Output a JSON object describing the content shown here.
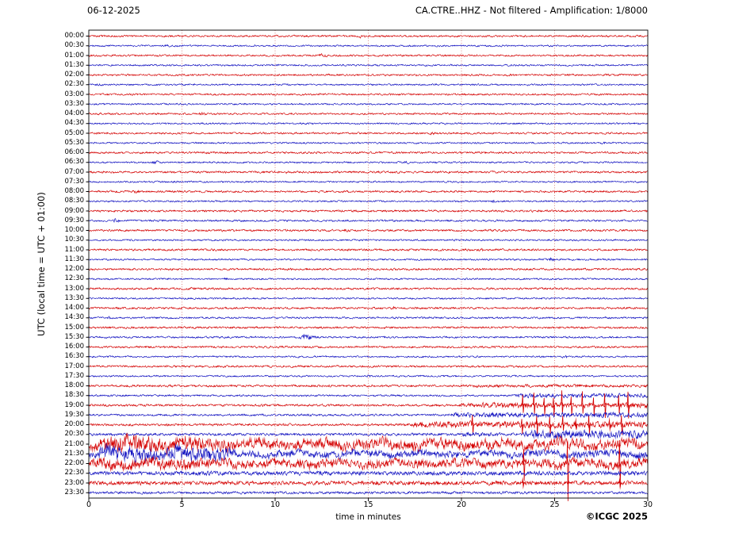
{
  "header": {
    "date": "06-12-2025",
    "title": "CA.CTRE..HHZ - Not filtered - Amplification: 1/8000"
  },
  "axes": {
    "ylabel": "UTC (local time = UTC + 01:00)",
    "xlabel": "time in minutes",
    "x_range": [
      0,
      30
    ],
    "x_ticks": [
      0,
      5,
      10,
      15,
      20,
      25,
      30
    ],
    "grid_x": [
      5,
      10,
      15,
      20,
      25
    ]
  },
  "footer": {
    "copyright": "©ICGC 2025"
  },
  "colors": {
    "trace_red": "#d40000",
    "trace_blue": "#1010c0",
    "grid": "#cc5555",
    "axis": "#000000",
    "background": "#ffffff"
  },
  "chart_data": {
    "type": "line",
    "subtype": "helicorder-seismogram",
    "station": "CA.CTRE..HHZ",
    "filter": "Not filtered",
    "amplification": "1/8000",
    "x_unit": "minutes",
    "x_range": [
      0,
      30
    ],
    "row_interval_minutes": 30,
    "legend": "48 half-hour traces, alternating red/blue; quiet background noise most of the day; event swarm with large clipped spikes 19:00-20:00 (x=23-29 min); strong continuous high-amplitude signal 21:00-22:30; decaying coda with isolated large spikes to 23:30",
    "rows": [
      {
        "label": "00:00",
        "color": "red",
        "amp": 1.1,
        "events": [
          {
            "t": "b",
            "s": 14.3,
            "e": 15.0,
            "a": 2.2
          },
          {
            "t": "b",
            "s": 26.3,
            "e": 26.8,
            "a": 1.8
          }
        ]
      },
      {
        "label": "00:30",
        "color": "blue",
        "amp": 1.0,
        "events": [
          {
            "t": "b",
            "s": 4.0,
            "e": 4.5,
            "a": 1.8
          }
        ]
      },
      {
        "label": "01:00",
        "color": "red",
        "amp": 1.1,
        "events": [
          {
            "t": "b",
            "s": 12.2,
            "e": 13.0,
            "a": 2.0
          }
        ]
      },
      {
        "label": "01:30",
        "color": "blue",
        "amp": 1.0,
        "events": []
      },
      {
        "label": "02:00",
        "color": "red",
        "amp": 1.1,
        "events": [
          {
            "t": "b",
            "s": 22.3,
            "e": 22.9,
            "a": 2.0
          }
        ]
      },
      {
        "label": "02:30",
        "color": "blue",
        "amp": 1.0,
        "events": [
          {
            "t": "b",
            "s": 0.3,
            "e": 0.9,
            "a": 1.8
          }
        ]
      },
      {
        "label": "03:00",
        "color": "red",
        "amp": 1.1,
        "events": []
      },
      {
        "label": "03:30",
        "color": "blue",
        "amp": 1.0,
        "events": [
          {
            "t": "b",
            "s": 8.6,
            "e": 9.1,
            "a": 1.7
          }
        ]
      },
      {
        "label": "04:00",
        "color": "red",
        "amp": 1.1,
        "events": [
          {
            "t": "b",
            "s": 5.8,
            "e": 6.4,
            "a": 2.0
          }
        ]
      },
      {
        "label": "04:30",
        "color": "blue",
        "amp": 1.0,
        "events": []
      },
      {
        "label": "05:00",
        "color": "red",
        "amp": 1.1,
        "events": [
          {
            "t": "b",
            "s": 18.2,
            "e": 18.7,
            "a": 1.8
          }
        ]
      },
      {
        "label": "05:30",
        "color": "blue",
        "amp": 1.0,
        "events": [
          {
            "t": "b",
            "s": 27.4,
            "e": 27.9,
            "a": 1.7
          }
        ]
      },
      {
        "label": "06:00",
        "color": "red",
        "amp": 1.2,
        "events": []
      },
      {
        "label": "06:30",
        "color": "blue",
        "amp": 1.0,
        "events": [
          {
            "t": "b",
            "s": 3.3,
            "e": 3.9,
            "a": 2.2
          },
          {
            "t": "b",
            "s": 16.8,
            "e": 17.3,
            "a": 1.8
          }
        ]
      },
      {
        "label": "07:00",
        "color": "red",
        "amp": 1.2,
        "events": [
          {
            "t": "b",
            "s": 10.4,
            "e": 10.9,
            "a": 1.8
          }
        ]
      },
      {
        "label": "07:30",
        "color": "blue",
        "amp": 1.0,
        "events": []
      },
      {
        "label": "08:00",
        "color": "red",
        "amp": 1.2,
        "events": [
          {
            "t": "b",
            "s": 2.3,
            "e": 2.9,
            "a": 2.0
          }
        ]
      },
      {
        "label": "08:30",
        "color": "blue",
        "amp": 1.0,
        "events": [
          {
            "t": "b",
            "s": 21.5,
            "e": 22.0,
            "a": 1.7
          }
        ]
      },
      {
        "label": "09:00",
        "color": "red",
        "amp": 1.2,
        "events": []
      },
      {
        "label": "09:30",
        "color": "blue",
        "amp": 1.1,
        "events": [
          {
            "t": "b",
            "s": 1.2,
            "e": 1.8,
            "a": 2.4
          }
        ]
      },
      {
        "label": "10:00",
        "color": "red",
        "amp": 1.2,
        "events": [
          {
            "t": "b",
            "s": 13.6,
            "e": 14.1,
            "a": 1.8
          }
        ]
      },
      {
        "label": "10:30",
        "color": "blue",
        "amp": 1.0,
        "events": []
      },
      {
        "label": "11:00",
        "color": "red",
        "amp": 1.2,
        "events": [
          {
            "t": "b",
            "s": 20.8,
            "e": 21.4,
            "a": 2.0
          }
        ]
      },
      {
        "label": "11:30",
        "color": "blue",
        "amp": 1.0,
        "events": [
          {
            "t": "b",
            "s": 24.6,
            "e": 25.1,
            "a": 2.2
          }
        ]
      },
      {
        "label": "12:00",
        "color": "red",
        "amp": 1.2,
        "events": []
      },
      {
        "label": "12:30",
        "color": "blue",
        "amp": 1.0,
        "events": [
          {
            "t": "b",
            "s": 7.1,
            "e": 7.6,
            "a": 1.7
          }
        ]
      },
      {
        "label": "13:00",
        "color": "red",
        "amp": 1.2,
        "events": [
          {
            "t": "b",
            "s": 5.3,
            "e": 5.9,
            "a": 2.0
          }
        ]
      },
      {
        "label": "13:30",
        "color": "blue",
        "amp": 1.0,
        "events": []
      },
      {
        "label": "14:00",
        "color": "red",
        "amp": 1.2,
        "events": [
          {
            "t": "b",
            "s": 16.1,
            "e": 16.6,
            "a": 1.8
          }
        ]
      },
      {
        "label": "14:30",
        "color": "blue",
        "amp": 1.1,
        "events": [
          {
            "t": "b",
            "s": 0.8,
            "e": 1.4,
            "a": 2.2
          }
        ]
      },
      {
        "label": "15:00",
        "color": "red",
        "amp": 1.2,
        "events": []
      },
      {
        "label": "15:30",
        "color": "blue",
        "amp": 1.1,
        "events": [
          {
            "t": "b",
            "s": 11.2,
            "e": 12.4,
            "a": 3.2
          }
        ]
      },
      {
        "label": "16:00",
        "color": "red",
        "amp": 1.2,
        "events": [
          {
            "t": "b",
            "s": 9.4,
            "e": 9.9,
            "a": 1.8
          }
        ]
      },
      {
        "label": "16:30",
        "color": "blue",
        "amp": 1.0,
        "events": [
          {
            "t": "b",
            "s": 25.3,
            "e": 25.8,
            "a": 1.9
          }
        ]
      },
      {
        "label": "17:00",
        "color": "red",
        "amp": 1.2,
        "events": []
      },
      {
        "label": "17:30",
        "color": "blue",
        "amp": 1.0,
        "events": [
          {
            "t": "b",
            "s": 14.8,
            "e": 15.3,
            "a": 1.7
          }
        ]
      },
      {
        "label": "18:00",
        "color": "red",
        "amp": 1.3,
        "events": [
          {
            "t": "b",
            "s": 20.0,
            "e": 30.0,
            "a": 1.8
          }
        ]
      },
      {
        "label": "18:30",
        "color": "blue",
        "amp": 1.1,
        "events": [
          {
            "t": "b",
            "s": 22.5,
            "e": 30.0,
            "a": 2.4
          }
        ]
      },
      {
        "label": "19:00",
        "color": "red",
        "amp": 1.3,
        "events": [
          {
            "t": "b",
            "s": 19.5,
            "e": 30.0,
            "a": 3.0
          },
          {
            "t": "s",
            "xs": [
              23.3,
              23.9,
              24.45,
              24.95,
              25.4,
              25.9,
              26.5,
              27.1,
              27.7,
              28.45,
              28.95
            ],
            "up": 14,
            "dn": 13
          }
        ]
      },
      {
        "label": "19:30",
        "color": "blue",
        "amp": 1.2,
        "events": [
          {
            "t": "b",
            "s": 19.0,
            "e": 30.0,
            "a": 2.8
          }
        ]
      },
      {
        "label": "20:00",
        "color": "red",
        "amp": 1.4,
        "events": [
          {
            "t": "b",
            "s": 17.0,
            "e": 30.0,
            "a": 3.6
          },
          {
            "t": "s",
            "xs": [
              20.6,
              23.25,
              24.05,
              24.75,
              25.45,
              26.15,
              26.85,
              27.95,
              28.6
            ],
            "up": 9,
            "dn": 10
          }
        ]
      },
      {
        "label": "20:30",
        "color": "blue",
        "amp": 1.5,
        "events": [
          {
            "t": "b",
            "s": 19.5,
            "e": 23.0,
            "a": 2.5
          },
          {
            "t": "b",
            "s": 23.0,
            "e": 30.0,
            "a": 4.5
          }
        ]
      },
      {
        "label": "21:00",
        "color": "red",
        "amp": 6.0,
        "lf": 2.2,
        "events": [
          {
            "t": "b",
            "s": 0.0,
            "e": 8.5,
            "a": 9.0
          }
        ]
      },
      {
        "label": "21:30",
        "color": "blue",
        "amp": 4.0,
        "lf": 1.8,
        "events": [
          {
            "t": "b",
            "s": 0.0,
            "e": 8.5,
            "a": 8.0
          }
        ]
      },
      {
        "label": "22:00",
        "color": "red",
        "amp": 5.0,
        "lf": 1.8,
        "events": [
          {
            "t": "b",
            "s": 0.0,
            "e": 7.0,
            "a": 6.5
          },
          {
            "t": "s",
            "xs": [
              23.35,
              25.7,
              28.5
            ],
            "up": 22,
            "dn": 36
          }
        ]
      },
      {
        "label": "22:30",
        "color": "blue",
        "amp": 2.4,
        "events": []
      },
      {
        "label": "23:00",
        "color": "red",
        "amp": 2.4,
        "events": [
          {
            "t": "s",
            "xs": [
              23.3,
              28.5
            ],
            "up": 4,
            "dn": 7
          }
        ]
      },
      {
        "label": "23:30",
        "color": "blue",
        "amp": 1.5,
        "events": []
      }
    ]
  }
}
